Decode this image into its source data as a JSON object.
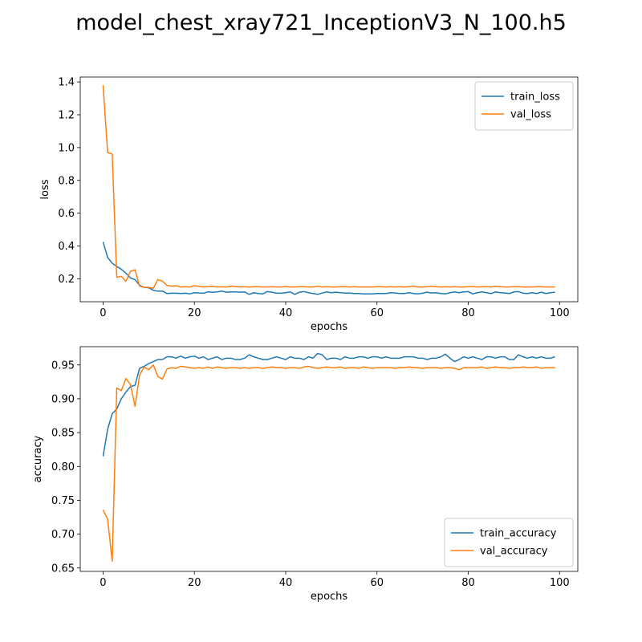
{
  "figure_title": "model_chest_xray721_InceptionV3_N_100.h5",
  "colors": {
    "train": "#1f77b4",
    "val": "#ff7f0e"
  },
  "chart_data": [
    {
      "type": "line",
      "xlabel": "epochs",
      "ylabel": "loss",
      "xlim": [
        -5,
        104
      ],
      "ylim": [
        0.06,
        1.43
      ],
      "xticks": [
        0,
        20,
        40,
        60,
        80,
        100
      ],
      "yticks": [
        0.2,
        0.4,
        0.6,
        0.8,
        1.0,
        1.2,
        1.4
      ],
      "ytick_labels": [
        "0.2",
        "0.4",
        "0.6",
        "0.8",
        "1.0",
        "1.2",
        "1.4"
      ],
      "legend": "top-right",
      "series": [
        {
          "name": "train_loss",
          "color": "#1f77b4",
          "values": [
            0.425,
            0.33,
            0.295,
            0.275,
            0.258,
            0.235,
            0.205,
            0.195,
            0.16,
            0.148,
            0.145,
            0.13,
            0.125,
            0.125,
            0.11,
            0.112,
            0.112,
            0.11,
            0.112,
            0.108,
            0.115,
            0.113,
            0.112,
            0.12,
            0.118,
            0.12,
            0.125,
            0.118,
            0.12,
            0.12,
            0.118,
            0.12,
            0.105,
            0.115,
            0.11,
            0.108,
            0.122,
            0.118,
            0.112,
            0.112,
            0.115,
            0.12,
            0.105,
            0.118,
            0.122,
            0.115,
            0.11,
            0.105,
            0.113,
            0.12,
            0.115,
            0.118,
            0.115,
            0.113,
            0.113,
            0.11,
            0.11,
            0.108,
            0.108,
            0.108,
            0.11,
            0.11,
            0.11,
            0.115,
            0.113,
            0.11,
            0.11,
            0.115,
            0.11,
            0.108,
            0.112,
            0.118,
            0.113,
            0.115,
            0.11,
            0.108,
            0.115,
            0.12,
            0.115,
            0.12,
            0.122,
            0.108,
            0.115,
            0.12,
            0.115,
            0.11,
            0.12,
            0.115,
            0.113,
            0.11,
            0.12,
            0.122,
            0.112,
            0.11,
            0.115,
            0.11,
            0.118,
            0.11,
            0.115,
            0.118
          ]
        },
        {
          "name": "val_loss",
          "color": "#ff7f0e",
          "values": [
            1.38,
            0.97,
            0.96,
            0.21,
            0.215,
            0.185,
            0.245,
            0.255,
            0.155,
            0.148,
            0.148,
            0.142,
            0.195,
            0.185,
            0.16,
            0.155,
            0.158,
            0.15,
            0.152,
            0.15,
            0.158,
            0.155,
            0.15,
            0.152,
            0.155,
            0.15,
            0.152,
            0.15,
            0.155,
            0.153,
            0.15,
            0.152,
            0.15,
            0.152,
            0.152,
            0.15,
            0.15,
            0.152,
            0.15,
            0.15,
            0.153,
            0.15,
            0.15,
            0.152,
            0.152,
            0.15,
            0.15,
            0.155,
            0.15,
            0.152,
            0.15,
            0.15,
            0.152,
            0.153,
            0.15,
            0.152,
            0.15,
            0.15,
            0.15,
            0.15,
            0.152,
            0.152,
            0.15,
            0.152,
            0.15,
            0.152,
            0.15,
            0.152,
            0.155,
            0.15,
            0.15,
            0.152,
            0.155,
            0.152,
            0.15,
            0.152,
            0.15,
            0.152,
            0.15,
            0.15,
            0.152,
            0.153,
            0.15,
            0.152,
            0.152,
            0.15,
            0.155,
            0.152,
            0.15,
            0.15,
            0.152,
            0.152,
            0.15,
            0.15,
            0.15,
            0.152,
            0.152,
            0.15,
            0.15,
            0.15
          ]
        }
      ]
    },
    {
      "type": "line",
      "xlabel": "epochs",
      "ylabel": "accuracy",
      "xlim": [
        -5,
        104
      ],
      "ylim": [
        0.645,
        0.977
      ],
      "xticks": [
        0,
        20,
        40,
        60,
        80,
        100
      ],
      "yticks": [
        0.65,
        0.7,
        0.75,
        0.8,
        0.85,
        0.9,
        0.95
      ],
      "ytick_labels": [
        "0.65",
        "0.70",
        "0.75",
        "0.80",
        "0.85",
        "0.90",
        "0.95"
      ],
      "legend": "lower-right",
      "series": [
        {
          "name": "train_accuracy",
          "color": "#1f77b4",
          "values": [
            0.815,
            0.855,
            0.878,
            0.885,
            0.9,
            0.91,
            0.918,
            0.92,
            0.945,
            0.948,
            0.952,
            0.955,
            0.958,
            0.958,
            0.962,
            0.962,
            0.96,
            0.963,
            0.96,
            0.962,
            0.963,
            0.96,
            0.962,
            0.958,
            0.96,
            0.962,
            0.958,
            0.96,
            0.96,
            0.958,
            0.958,
            0.96,
            0.965,
            0.962,
            0.96,
            0.958,
            0.958,
            0.96,
            0.962,
            0.96,
            0.958,
            0.962,
            0.96,
            0.96,
            0.958,
            0.962,
            0.96,
            0.967,
            0.965,
            0.958,
            0.96,
            0.96,
            0.958,
            0.962,
            0.96,
            0.96,
            0.962,
            0.962,
            0.96,
            0.962,
            0.962,
            0.96,
            0.962,
            0.96,
            0.96,
            0.96,
            0.962,
            0.962,
            0.962,
            0.96,
            0.96,
            0.958,
            0.96,
            0.96,
            0.962,
            0.966,
            0.96,
            0.955,
            0.958,
            0.962,
            0.96,
            0.962,
            0.96,
            0.958,
            0.962,
            0.962,
            0.96,
            0.962,
            0.962,
            0.958,
            0.958,
            0.965,
            0.962,
            0.96,
            0.962,
            0.96,
            0.962,
            0.96,
            0.96,
            0.962
          ]
        },
        {
          "name": "val_accuracy",
          "color": "#ff7f0e",
          "values": [
            0.736,
            0.722,
            0.66,
            0.916,
            0.912,
            0.93,
            0.921,
            0.889,
            0.935,
            0.947,
            0.943,
            0.95,
            0.933,
            0.929,
            0.944,
            0.946,
            0.945,
            0.948,
            0.947,
            0.946,
            0.945,
            0.946,
            0.945,
            0.947,
            0.945,
            0.947,
            0.946,
            0.945,
            0.946,
            0.946,
            0.945,
            0.946,
            0.945,
            0.946,
            0.946,
            0.945,
            0.946,
            0.947,
            0.946,
            0.946,
            0.945,
            0.946,
            0.946,
            0.945,
            0.947,
            0.948,
            0.946,
            0.945,
            0.946,
            0.947,
            0.946,
            0.946,
            0.947,
            0.945,
            0.946,
            0.946,
            0.945,
            0.947,
            0.946,
            0.945,
            0.946,
            0.946,
            0.946,
            0.946,
            0.945,
            0.946,
            0.946,
            0.947,
            0.946,
            0.946,
            0.945,
            0.946,
            0.946,
            0.946,
            0.945,
            0.946,
            0.946,
            0.945,
            0.943,
            0.946,
            0.946,
            0.946,
            0.946,
            0.947,
            0.945,
            0.946,
            0.947,
            0.946,
            0.946,
            0.945,
            0.946,
            0.946,
            0.947,
            0.946,
            0.946,
            0.947,
            0.945,
            0.946,
            0.946,
            0.946
          ]
        }
      ]
    }
  ]
}
